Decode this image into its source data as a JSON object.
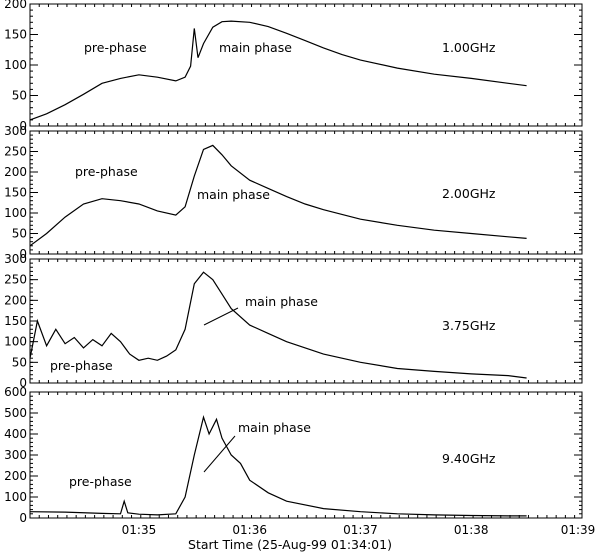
{
  "figure": {
    "x_axis_label": "Start Time (25-Aug-99 01:34:01)"
  },
  "chart_data": [
    {
      "type": "line",
      "freq_label": "1.00GHz",
      "annotations": [
        "pre-phase",
        "main phase"
      ],
      "ylim": [
        0,
        200
      ],
      "yticks": [
        0,
        50,
        100,
        150,
        200
      ],
      "xlim": [
        "01:34:01",
        "01:39:00"
      ],
      "xticks": [
        "01:35",
        "01:36",
        "01:37",
        "01:38",
        "01:39"
      ],
      "series": [
        {
          "x": [
            "01:34:01",
            "01:34:10",
            "01:34:20",
            "01:34:30",
            "01:34:40",
            "01:34:50",
            "01:35:00",
            "01:35:10",
            "01:35:20",
            "01:35:25",
            "01:35:28",
            "01:35:30",
            "01:35:32",
            "01:35:35",
            "01:35:40",
            "01:35:45",
            "01:35:50",
            "01:36:00",
            "01:36:10",
            "01:36:20",
            "01:36:30",
            "01:36:40",
            "01:36:50",
            "01:37:00",
            "01:37:20",
            "01:37:40",
            "01:38:00",
            "01:38:20",
            "01:38:30"
          ],
          "values": [
            10,
            20,
            35,
            52,
            70,
            78,
            84,
            80,
            74,
            80,
            98,
            160,
            112,
            135,
            162,
            171,
            172,
            170,
            163,
            152,
            140,
            128,
            117,
            108,
            95,
            85,
            78,
            70,
            66
          ]
        }
      ]
    },
    {
      "type": "line",
      "freq_label": "2.00GHz",
      "annotations": [
        "pre-phase",
        "main phase"
      ],
      "ylim": [
        0,
        300
      ],
      "yticks": [
        0,
        50,
        100,
        150,
        200,
        250,
        300
      ],
      "xlim": [
        "01:34:01",
        "01:39:00"
      ],
      "xticks": [
        "01:35",
        "01:36",
        "01:37",
        "01:38",
        "01:39"
      ],
      "series": [
        {
          "x": [
            "01:34:01",
            "01:34:10",
            "01:34:20",
            "01:34:30",
            "01:34:40",
            "01:34:50",
            "01:35:00",
            "01:35:10",
            "01:35:20",
            "01:35:25",
            "01:35:30",
            "01:35:35",
            "01:35:40",
            "01:35:45",
            "01:35:50",
            "01:36:00",
            "01:36:10",
            "01:36:20",
            "01:36:30",
            "01:36:40",
            "01:37:00",
            "01:37:20",
            "01:37:40",
            "01:38:00",
            "01:38:20",
            "01:38:30"
          ],
          "values": [
            20,
            50,
            90,
            122,
            135,
            130,
            122,
            105,
            95,
            115,
            190,
            255,
            265,
            242,
            215,
            180,
            160,
            140,
            122,
            108,
            85,
            70,
            58,
            50,
            42,
            38
          ]
        }
      ]
    },
    {
      "type": "line",
      "freq_label": "3.75GHz",
      "annotations": [
        "pre-phase",
        "main phase"
      ],
      "ylim": [
        0,
        300
      ],
      "yticks": [
        0,
        50,
        100,
        150,
        200,
        250,
        300
      ],
      "xlim": [
        "01:34:01",
        "01:39:00"
      ],
      "xticks": [
        "01:35",
        "01:36",
        "01:37",
        "01:38",
        "01:39"
      ],
      "series": [
        {
          "x": [
            "01:34:01",
            "01:34:05",
            "01:34:10",
            "01:34:15",
            "01:34:20",
            "01:34:25",
            "01:34:30",
            "01:34:35",
            "01:34:40",
            "01:34:45",
            "01:34:50",
            "01:34:55",
            "01:35:00",
            "01:35:05",
            "01:35:10",
            "01:35:15",
            "01:35:20",
            "01:35:25",
            "01:35:30",
            "01:35:35",
            "01:35:40",
            "01:35:45",
            "01:35:50",
            "01:36:00",
            "01:36:10",
            "01:36:20",
            "01:36:40",
            "01:37:00",
            "01:37:20",
            "01:37:40",
            "01:38:00",
            "01:38:20",
            "01:38:30"
          ],
          "values": [
            60,
            150,
            90,
            130,
            95,
            110,
            85,
            105,
            90,
            120,
            100,
            70,
            55,
            60,
            55,
            65,
            80,
            130,
            240,
            268,
            250,
            215,
            180,
            140,
            120,
            100,
            70,
            50,
            35,
            28,
            22,
            18,
            12
          ]
        }
      ]
    },
    {
      "type": "line",
      "freq_label": "9.40GHz",
      "annotations": [
        "pre-phase",
        "main phase"
      ],
      "ylim": [
        0,
        600
      ],
      "yticks": [
        0,
        100,
        200,
        300,
        400,
        500,
        600
      ],
      "xlim": [
        "01:34:01",
        "01:39:00"
      ],
      "xticks": [
        "01:35",
        "01:36",
        "01:37",
        "01:38",
        "01:39"
      ],
      "series": [
        {
          "x": [
            "01:34:01",
            "01:34:20",
            "01:34:40",
            "01:34:50",
            "01:34:52",
            "01:34:54",
            "01:35:00",
            "01:35:10",
            "01:35:20",
            "01:35:25",
            "01:35:30",
            "01:35:35",
            "01:35:38",
            "01:35:42",
            "01:35:45",
            "01:35:50",
            "01:35:55",
            "01:36:00",
            "01:36:10",
            "01:36:20",
            "01:36:40",
            "01:37:00",
            "01:37:20",
            "01:37:40",
            "01:38:00",
            "01:38:20",
            "01:38:30"
          ],
          "values": [
            30,
            28,
            22,
            20,
            80,
            25,
            18,
            15,
            20,
            100,
            300,
            480,
            400,
            470,
            380,
            300,
            260,
            180,
            120,
            80,
            45,
            30,
            20,
            15,
            12,
            10,
            10
          ]
        }
      ]
    }
  ]
}
